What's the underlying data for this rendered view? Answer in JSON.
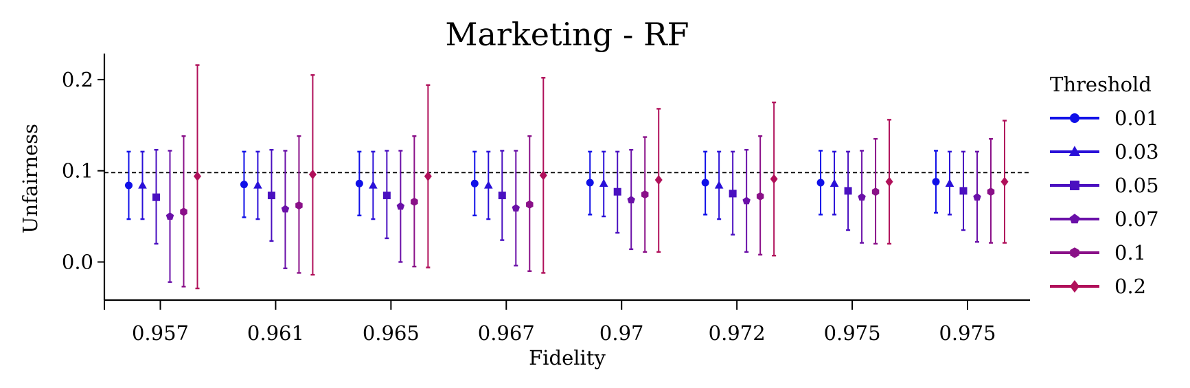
{
  "chart_data": {
    "type": "errorbar",
    "title": "Marketing - RF",
    "xlabel": "Fidelity",
    "ylabel": "Unfairness",
    "categories": [
      "0.957",
      "0.961",
      "0.965",
      "0.967",
      "0.97",
      "0.972",
      "0.975",
      "0.975"
    ],
    "ylim": [
      -0.04,
      0.23
    ],
    "yticks": [
      0.0,
      0.1,
      0.2
    ],
    "ytick_labels": [
      "0.0",
      "0.1",
      "0.2"
    ],
    "reference_line": {
      "y": 0.098,
      "style": "dashed",
      "color": "#000000"
    },
    "legend": {
      "title": "Threshold",
      "placement": "right"
    },
    "grid": false,
    "series": [
      {
        "name": "0.01",
        "color": "#1010e8",
        "marker": "circle",
        "values": [
          0.084,
          0.085,
          0.086,
          0.086,
          0.087,
          0.087,
          0.087,
          0.088
        ],
        "lower": [
          0.047,
          0.049,
          0.051,
          0.051,
          0.052,
          0.052,
          0.052,
          0.054
        ],
        "upper": [
          0.121,
          0.121,
          0.121,
          0.121,
          0.121,
          0.121,
          0.122,
          0.122
        ]
      },
      {
        "name": "0.03",
        "color": "#2a10d8",
        "marker": "triangle",
        "values": [
          0.084,
          0.084,
          0.084,
          0.084,
          0.086,
          0.084,
          0.086,
          0.086
        ],
        "lower": [
          0.047,
          0.047,
          0.047,
          0.047,
          0.05,
          0.047,
          0.052,
          0.052
        ],
        "upper": [
          0.121,
          0.121,
          0.121,
          0.121,
          0.121,
          0.121,
          0.121,
          0.121
        ]
      },
      {
        "name": "0.05",
        "color": "#4a10c0",
        "marker": "square",
        "values": [
          0.071,
          0.073,
          0.073,
          0.073,
          0.077,
          0.075,
          0.078,
          0.078
        ],
        "lower": [
          0.02,
          0.023,
          0.026,
          0.024,
          0.032,
          0.03,
          0.035,
          0.035
        ],
        "upper": [
          0.123,
          0.123,
          0.122,
          0.122,
          0.121,
          0.121,
          0.121,
          0.121
        ]
      },
      {
        "name": "0.07",
        "color": "#6a10a8",
        "marker": "pentagon",
        "values": [
          0.05,
          0.058,
          0.061,
          0.059,
          0.068,
          0.067,
          0.071,
          0.071
        ],
        "lower": [
          -0.022,
          -0.007,
          0.0,
          -0.004,
          0.014,
          0.011,
          0.021,
          0.022
        ],
        "upper": [
          0.122,
          0.122,
          0.122,
          0.122,
          0.123,
          0.123,
          0.122,
          0.121
        ]
      },
      {
        "name": "0.1",
        "color": "#8a1088",
        "marker": "hexagon",
        "values": [
          0.055,
          0.062,
          0.066,
          0.063,
          0.074,
          0.072,
          0.077,
          0.077
        ],
        "lower": [
          -0.027,
          -0.012,
          -0.005,
          -0.01,
          0.011,
          0.008,
          0.02,
          0.021
        ],
        "upper": [
          0.138,
          0.138,
          0.138,
          0.138,
          0.137,
          0.138,
          0.135,
          0.135
        ]
      },
      {
        "name": "0.2",
        "color": "#b0105a",
        "marker": "diamond",
        "values": [
          0.094,
          0.096,
          0.094,
          0.095,
          0.09,
          0.091,
          0.088,
          0.088
        ],
        "lower": [
          -0.029,
          -0.014,
          -0.006,
          -0.012,
          0.011,
          0.007,
          0.02,
          0.021
        ],
        "upper": [
          0.216,
          0.205,
          0.194,
          0.202,
          0.168,
          0.175,
          0.156,
          0.155
        ]
      }
    ]
  }
}
